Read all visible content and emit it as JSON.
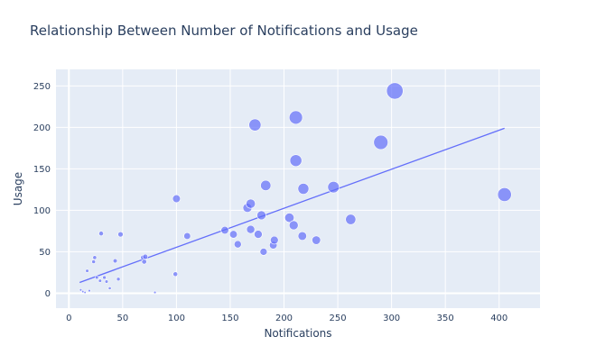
{
  "chart_data": {
    "type": "scatter",
    "title": "Relationship Between Number of Notifications and Usage",
    "xlabel": "Notifications",
    "ylabel": "Usage",
    "xlim": [
      -12,
      438
    ],
    "ylim": [
      -18,
      270
    ],
    "xticks": [
      0,
      50,
      100,
      150,
      200,
      250,
      300,
      350,
      400
    ],
    "yticks": [
      0,
      50,
      100,
      150,
      200,
      250
    ],
    "plot_background": "#e5ecf6",
    "marker_color": "#636efa",
    "trendline": {
      "x": [
        10,
        405
      ],
      "y": [
        13,
        199
      ],
      "color": "#636efa"
    },
    "points": [
      {
        "x": 11,
        "y": 4
      },
      {
        "x": 13,
        "y": 2
      },
      {
        "x": 15,
        "y": 1
      },
      {
        "x": 17,
        "y": 27
      },
      {
        "x": 19,
        "y": 3
      },
      {
        "x": 23,
        "y": 38
      },
      {
        "x": 24,
        "y": 43
      },
      {
        "x": 26,
        "y": 19
      },
      {
        "x": 29,
        "y": 15
      },
      {
        "x": 30,
        "y": 72
      },
      {
        "x": 33,
        "y": 19
      },
      {
        "x": 35,
        "y": 14
      },
      {
        "x": 38,
        "y": 6
      },
      {
        "x": 43,
        "y": 39
      },
      {
        "x": 46,
        "y": 17
      },
      {
        "x": 48,
        "y": 71
      },
      {
        "x": 69,
        "y": 43
      },
      {
        "x": 70,
        "y": 38
      },
      {
        "x": 71,
        "y": 44
      },
      {
        "x": 80,
        "y": 1
      },
      {
        "x": 99,
        "y": 23
      },
      {
        "x": 100,
        "y": 114
      },
      {
        "x": 110,
        "y": 69
      },
      {
        "x": 145,
        "y": 76
      },
      {
        "x": 153,
        "y": 71
      },
      {
        "x": 157,
        "y": 59
      },
      {
        "x": 166,
        "y": 103
      },
      {
        "x": 169,
        "y": 108
      },
      {
        "x": 169,
        "y": 77
      },
      {
        "x": 173,
        "y": 203
      },
      {
        "x": 176,
        "y": 71
      },
      {
        "x": 179,
        "y": 94
      },
      {
        "x": 181,
        "y": 50
      },
      {
        "x": 183,
        "y": 130
      },
      {
        "x": 190,
        "y": 58
      },
      {
        "x": 191,
        "y": 64
      },
      {
        "x": 205,
        "y": 91
      },
      {
        "x": 209,
        "y": 82
      },
      {
        "x": 211,
        "y": 160
      },
      {
        "x": 211,
        "y": 212
      },
      {
        "x": 217,
        "y": 69
      },
      {
        "x": 218,
        "y": 126
      },
      {
        "x": 230,
        "y": 64
      },
      {
        "x": 246,
        "y": 128
      },
      {
        "x": 262,
        "y": 89
      },
      {
        "x": 290,
        "y": 182
      },
      {
        "x": 303,
        "y": 244
      },
      {
        "x": 405,
        "y": 119
      }
    ]
  }
}
